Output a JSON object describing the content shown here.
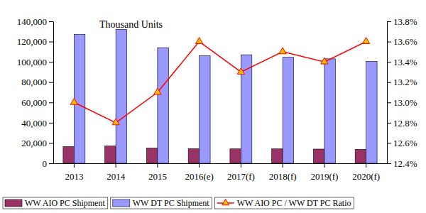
{
  "chart_data": {
    "type": "bar",
    "annotation": "Thousand Units",
    "categories": [
      "2013",
      "2014",
      "2015",
      "2016(e)",
      "2017(f)",
      "2018(f)",
      "2019(f)",
      "2020(f)"
    ],
    "series": [
      {
        "name": "WW AIO PC Shipment",
        "type": "bar",
        "color": "#993366",
        "values": [
          16500,
          17000,
          15000,
          14500,
          14200,
          14200,
          14000,
          13800
        ]
      },
      {
        "name": "WW DT PC Shipment",
        "type": "bar",
        "color": "#9999ff",
        "values": [
          127000,
          132000,
          114000,
          106000,
          107000,
          104500,
          103000,
          100500
        ]
      },
      {
        "name": "WW AIO PC / WW DT PC Ratio",
        "type": "line",
        "axis": "y2",
        "color": "#ff0000",
        "marker": "triangle",
        "line_style": "solid",
        "values": [
          13.0,
          12.8,
          13.1,
          13.6,
          13.3,
          13.5,
          13.4,
          13.6
        ]
      }
    ],
    "ylim": [
      0,
      140000
    ],
    "yticks": [
      0,
      {
        "value": 20000,
        "label": "20,000"
      },
      {
        "value": 40000,
        "label": "40,000"
      },
      {
        "value": 60000,
        "label": "60,000"
      },
      {
        "value": 80000,
        "label": "80,000"
      },
      {
        "value": 100000,
        "label": "100,000"
      },
      {
        "value": 120000,
        "label": "120,000"
      },
      {
        "value": 140000,
        "label": "140,000"
      }
    ],
    "y2lim": [
      12.4,
      13.8
    ],
    "y2ticks": [
      {
        "value": 12.4,
        "label": "12.4%"
      },
      {
        "value": 12.6,
        "label": "12.6%"
      },
      {
        "value": 12.8,
        "label": "12.8%"
      },
      {
        "value": 13.0,
        "label": "13.0%"
      },
      {
        "value": 13.2,
        "label": "13.2%"
      },
      {
        "value": 13.4,
        "label": "13.4%"
      },
      {
        "value": 13.6,
        "label": "13.6%"
      },
      {
        "value": 13.8,
        "label": "13.8%"
      }
    ],
    "grid": false,
    "legend": "bottom"
  }
}
